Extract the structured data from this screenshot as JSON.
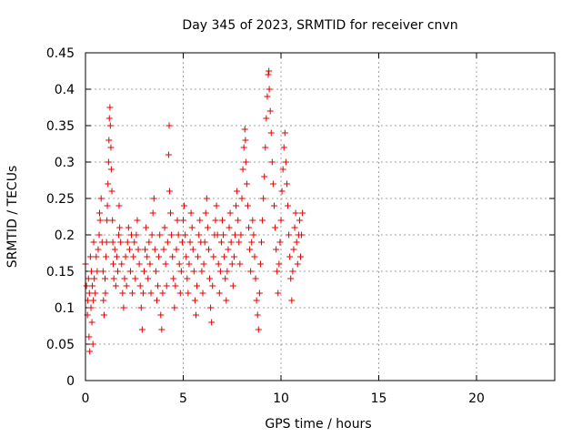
{
  "chart_data": {
    "type": "scatter",
    "title": "Day 345 of 2023, SRMTID for receiver cnvn",
    "xlabel": "GPS time / hours",
    "ylabel": "SRMTID / TECUs",
    "xlim": [
      0,
      24
    ],
    "ylim": [
      0,
      0.45
    ],
    "x_ticks": [
      0,
      5,
      10,
      15,
      20
    ],
    "y_ticks": [
      0,
      0.05,
      0.1,
      0.15,
      0.2,
      0.25,
      0.3,
      0.35,
      0.4,
      0.45
    ],
    "grid": true,
    "marker": "+",
    "color": "#e00000",
    "series": [
      {
        "name": "SRMTID",
        "points": [
          [
            0.0,
            0.16
          ],
          [
            0.05,
            0.13
          ],
          [
            0.1,
            0.09
          ],
          [
            0.12,
            0.11
          ],
          [
            0.15,
            0.14
          ],
          [
            0.18,
            0.06
          ],
          [
            0.2,
            0.12
          ],
          [
            0.22,
            0.04
          ],
          [
            0.25,
            0.17
          ],
          [
            0.28,
            0.1
          ],
          [
            0.3,
            0.15
          ],
          [
            0.33,
            0.08
          ],
          [
            0.35,
            0.13
          ],
          [
            0.38,
            0.05
          ],
          [
            0.4,
            0.11
          ],
          [
            0.42,
            0.19
          ],
          [
            0.45,
            0.14
          ],
          [
            0.5,
            0.12
          ],
          [
            0.55,
            0.17
          ],
          [
            0.6,
            0.15
          ],
          [
            0.65,
            0.18
          ],
          [
            0.7,
            0.2
          ],
          [
            0.72,
            0.23
          ],
          [
            0.75,
            0.22
          ],
          [
            0.8,
            0.25
          ],
          [
            0.85,
            0.19
          ],
          [
            0.9,
            0.15
          ],
          [
            0.92,
            0.11
          ],
          [
            0.95,
            0.09
          ],
          [
            1.0,
            0.14
          ],
          [
            1.02,
            0.12
          ],
          [
            1.05,
            0.17
          ],
          [
            1.08,
            0.19
          ],
          [
            1.1,
            0.22
          ],
          [
            1.12,
            0.24
          ],
          [
            1.15,
            0.27
          ],
          [
            1.18,
            0.3
          ],
          [
            1.2,
            0.33
          ],
          [
            1.22,
            0.36
          ],
          [
            1.25,
            0.375
          ],
          [
            1.27,
            0.35
          ],
          [
            1.3,
            0.32
          ],
          [
            1.32,
            0.29
          ],
          [
            1.35,
            0.26
          ],
          [
            1.38,
            0.22
          ],
          [
            1.4,
            0.19
          ],
          [
            1.42,
            0.16
          ],
          [
            1.45,
            0.14
          ],
          [
            1.5,
            0.18
          ],
          [
            1.55,
            0.13
          ],
          [
            1.6,
            0.17
          ],
          [
            1.65,
            0.15
          ],
          [
            1.7,
            0.2
          ],
          [
            1.72,
            0.24
          ],
          [
            1.75,
            0.21
          ],
          [
            1.8,
            0.19
          ],
          [
            1.85,
            0.16
          ],
          [
            1.9,
            0.12
          ],
          [
            1.95,
            0.1
          ],
          [
            2.0,
            0.14
          ],
          [
            2.05,
            0.17
          ],
          [
            2.1,
            0.13
          ],
          [
            2.15,
            0.19
          ],
          [
            2.2,
            0.21
          ],
          [
            2.25,
            0.18
          ],
          [
            2.3,
            0.15
          ],
          [
            2.35,
            0.2
          ],
          [
            2.4,
            0.12
          ],
          [
            2.45,
            0.17
          ],
          [
            2.5,
            0.19
          ],
          [
            2.55,
            0.14
          ],
          [
            2.6,
            0.2
          ],
          [
            2.65,
            0.22
          ],
          [
            2.7,
            0.18
          ],
          [
            2.75,
            0.16
          ],
          [
            2.8,
            0.13
          ],
          [
            2.85,
            0.1
          ],
          [
            2.9,
            0.07
          ],
          [
            2.95,
            0.12
          ],
          [
            3.0,
            0.15
          ],
          [
            3.05,
            0.18
          ],
          [
            3.1,
            0.21
          ],
          [
            3.15,
            0.17
          ],
          [
            3.2,
            0.14
          ],
          [
            3.25,
            0.19
          ],
          [
            3.3,
            0.16
          ],
          [
            3.35,
            0.12
          ],
          [
            3.4,
            0.2
          ],
          [
            3.45,
            0.23
          ],
          [
            3.5,
            0.25
          ],
          [
            3.55,
            0.18
          ],
          [
            3.6,
            0.15
          ],
          [
            3.65,
            0.11
          ],
          [
            3.7,
            0.13
          ],
          [
            3.75,
            0.17
          ],
          [
            3.8,
            0.2
          ],
          [
            3.85,
            0.09
          ],
          [
            3.9,
            0.07
          ],
          [
            3.95,
            0.12
          ],
          [
            4.0,
            0.18
          ],
          [
            4.05,
            0.21
          ],
          [
            4.1,
            0.16
          ],
          [
            4.15,
            0.13
          ],
          [
            4.2,
            0.19
          ],
          [
            4.25,
            0.31
          ],
          [
            4.28,
            0.35
          ],
          [
            4.3,
            0.26
          ],
          [
            4.35,
            0.23
          ],
          [
            4.4,
            0.2
          ],
          [
            4.45,
            0.17
          ],
          [
            4.5,
            0.14
          ],
          [
            4.55,
            0.1
          ],
          [
            4.6,
            0.13
          ],
          [
            4.65,
            0.18
          ],
          [
            4.7,
            0.22
          ],
          [
            4.75,
            0.2
          ],
          [
            4.8,
            0.16
          ],
          [
            4.85,
            0.12
          ],
          [
            4.9,
            0.15
          ],
          [
            4.95,
            0.19
          ],
          [
            5.0,
            0.22
          ],
          [
            5.05,
            0.24
          ],
          [
            5.1,
            0.2
          ],
          [
            5.15,
            0.17
          ],
          [
            5.2,
            0.14
          ],
          [
            5.25,
            0.12
          ],
          [
            5.3,
            0.16
          ],
          [
            5.35,
            0.19
          ],
          [
            5.4,
            0.23
          ],
          [
            5.45,
            0.21
          ],
          [
            5.5,
            0.18
          ],
          [
            5.55,
            0.15
          ],
          [
            5.6,
            0.11
          ],
          [
            5.65,
            0.09
          ],
          [
            5.7,
            0.13
          ],
          [
            5.75,
            0.17
          ],
          [
            5.8,
            0.2
          ],
          [
            5.85,
            0.22
          ],
          [
            5.9,
            0.19
          ],
          [
            5.95,
            0.15
          ],
          [
            6.0,
            0.12
          ],
          [
            6.05,
            0.16
          ],
          [
            6.1,
            0.19
          ],
          [
            6.15,
            0.23
          ],
          [
            6.2,
            0.25
          ],
          [
            6.25,
            0.21
          ],
          [
            6.3,
            0.18
          ],
          [
            6.35,
            0.14
          ],
          [
            6.4,
            0.1
          ],
          [
            6.45,
            0.08
          ],
          [
            6.5,
            0.13
          ],
          [
            6.55,
            0.17
          ],
          [
            6.6,
            0.2
          ],
          [
            6.65,
            0.22
          ],
          [
            6.7,
            0.24
          ],
          [
            6.75,
            0.2
          ],
          [
            6.8,
            0.16
          ],
          [
            6.85,
            0.12
          ],
          [
            6.9,
            0.15
          ],
          [
            6.95,
            0.19
          ],
          [
            7.0,
            0.22
          ],
          [
            7.05,
            0.2
          ],
          [
            7.1,
            0.17
          ],
          [
            7.15,
            0.14
          ],
          [
            7.2,
            0.11
          ],
          [
            7.25,
            0.15
          ],
          [
            7.3,
            0.18
          ],
          [
            7.35,
            0.21
          ],
          [
            7.4,
            0.23
          ],
          [
            7.45,
            0.19
          ],
          [
            7.5,
            0.16
          ],
          [
            7.55,
            0.13
          ],
          [
            7.6,
            0.17
          ],
          [
            7.65,
            0.2
          ],
          [
            7.7,
            0.24
          ],
          [
            7.75,
            0.26
          ],
          [
            7.8,
            0.22
          ],
          [
            7.85,
            0.19
          ],
          [
            7.9,
            0.16
          ],
          [
            7.95,
            0.2
          ],
          [
            8.0,
            0.25
          ],
          [
            8.05,
            0.29
          ],
          [
            8.1,
            0.32
          ],
          [
            8.15,
            0.345
          ],
          [
            8.18,
            0.33
          ],
          [
            8.2,
            0.3
          ],
          [
            8.25,
            0.27
          ],
          [
            8.3,
            0.24
          ],
          [
            8.35,
            0.21
          ],
          [
            8.4,
            0.18
          ],
          [
            8.45,
            0.15
          ],
          [
            8.5,
            0.19
          ],
          [
            8.55,
            0.22
          ],
          [
            8.6,
            0.2
          ],
          [
            8.65,
            0.17
          ],
          [
            8.7,
            0.14
          ],
          [
            8.75,
            0.11
          ],
          [
            8.8,
            0.09
          ],
          [
            8.85,
            0.07
          ],
          [
            8.9,
            0.12
          ],
          [
            8.95,
            0.16
          ],
          [
            9.0,
            0.19
          ],
          [
            9.05,
            0.22
          ],
          [
            9.1,
            0.25
          ],
          [
            9.15,
            0.28
          ],
          [
            9.2,
            0.32
          ],
          [
            9.25,
            0.36
          ],
          [
            9.3,
            0.39
          ],
          [
            9.35,
            0.42
          ],
          [
            9.38,
            0.425
          ],
          [
            9.4,
            0.4
          ],
          [
            9.45,
            0.37
          ],
          [
            9.5,
            0.34
          ],
          [
            9.55,
            0.3
          ],
          [
            9.6,
            0.27
          ],
          [
            9.65,
            0.24
          ],
          [
            9.7,
            0.21
          ],
          [
            9.75,
            0.18
          ],
          [
            9.8,
            0.15
          ],
          [
            9.85,
            0.12
          ],
          [
            9.9,
            0.16
          ],
          [
            9.95,
            0.19
          ],
          [
            10.0,
            0.22
          ],
          [
            10.05,
            0.26
          ],
          [
            10.1,
            0.29
          ],
          [
            10.15,
            0.32
          ],
          [
            10.2,
            0.34
          ],
          [
            10.25,
            0.3
          ],
          [
            10.3,
            0.27
          ],
          [
            10.35,
            0.24
          ],
          [
            10.4,
            0.2
          ],
          [
            10.45,
            0.17
          ],
          [
            10.5,
            0.14
          ],
          [
            10.55,
            0.11
          ],
          [
            10.6,
            0.15
          ],
          [
            10.65,
            0.18
          ],
          [
            10.7,
            0.21
          ],
          [
            10.75,
            0.23
          ],
          [
            10.8,
            0.19
          ],
          [
            10.85,
            0.16
          ],
          [
            10.9,
            0.2
          ],
          [
            10.95,
            0.22
          ],
          [
            11.0,
            0.17
          ],
          [
            11.05,
            0.2
          ],
          [
            11.1,
            0.23
          ]
        ]
      }
    ]
  }
}
